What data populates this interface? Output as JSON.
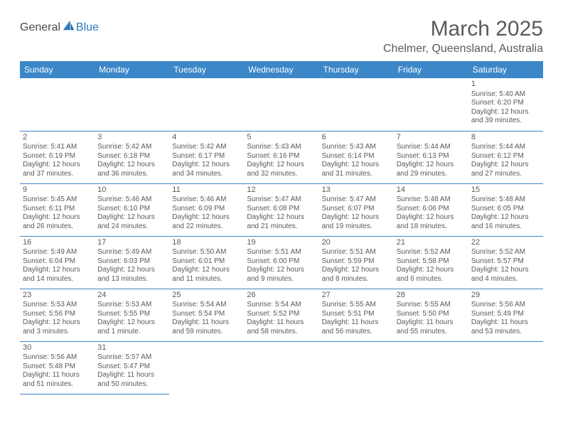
{
  "logo": {
    "part1": "General",
    "part2": "Blue"
  },
  "title": "March 2025",
  "location": "Chelmer, Queensland, Australia",
  "colors": {
    "header_bg": "#3b87c8",
    "header_text": "#ffffff",
    "body_text": "#5a5a5a",
    "rule": "#3b87c8",
    "logo_accent": "#2a7bbf"
  },
  "weekdays": [
    "Sunday",
    "Monday",
    "Tuesday",
    "Wednesday",
    "Thursday",
    "Friday",
    "Saturday"
  ],
  "grid": {
    "rows": 6,
    "cols": 7,
    "first_weekday_index": 6,
    "days_in_month": 31
  },
  "cells": [
    [
      null,
      null,
      null,
      null,
      null,
      null,
      {
        "n": "1",
        "sr": "Sunrise: 5:40 AM",
        "ss": "Sunset: 6:20 PM",
        "d1": "Daylight: 12 hours",
        "d2": "and 39 minutes."
      }
    ],
    [
      {
        "n": "2",
        "sr": "Sunrise: 5:41 AM",
        "ss": "Sunset: 6:19 PM",
        "d1": "Daylight: 12 hours",
        "d2": "and 37 minutes."
      },
      {
        "n": "3",
        "sr": "Sunrise: 5:42 AM",
        "ss": "Sunset: 6:18 PM",
        "d1": "Daylight: 12 hours",
        "d2": "and 36 minutes."
      },
      {
        "n": "4",
        "sr": "Sunrise: 5:42 AM",
        "ss": "Sunset: 6:17 PM",
        "d1": "Daylight: 12 hours",
        "d2": "and 34 minutes."
      },
      {
        "n": "5",
        "sr": "Sunrise: 5:43 AM",
        "ss": "Sunset: 6:16 PM",
        "d1": "Daylight: 12 hours",
        "d2": "and 32 minutes."
      },
      {
        "n": "6",
        "sr": "Sunrise: 5:43 AM",
        "ss": "Sunset: 6:14 PM",
        "d1": "Daylight: 12 hours",
        "d2": "and 31 minutes."
      },
      {
        "n": "7",
        "sr": "Sunrise: 5:44 AM",
        "ss": "Sunset: 6:13 PM",
        "d1": "Daylight: 12 hours",
        "d2": "and 29 minutes."
      },
      {
        "n": "8",
        "sr": "Sunrise: 5:44 AM",
        "ss": "Sunset: 6:12 PM",
        "d1": "Daylight: 12 hours",
        "d2": "and 27 minutes."
      }
    ],
    [
      {
        "n": "9",
        "sr": "Sunrise: 5:45 AM",
        "ss": "Sunset: 6:11 PM",
        "d1": "Daylight: 12 hours",
        "d2": "and 26 minutes."
      },
      {
        "n": "10",
        "sr": "Sunrise: 5:46 AM",
        "ss": "Sunset: 6:10 PM",
        "d1": "Daylight: 12 hours",
        "d2": "and 24 minutes."
      },
      {
        "n": "11",
        "sr": "Sunrise: 5:46 AM",
        "ss": "Sunset: 6:09 PM",
        "d1": "Daylight: 12 hours",
        "d2": "and 22 minutes."
      },
      {
        "n": "12",
        "sr": "Sunrise: 5:47 AM",
        "ss": "Sunset: 6:08 PM",
        "d1": "Daylight: 12 hours",
        "d2": "and 21 minutes."
      },
      {
        "n": "13",
        "sr": "Sunrise: 5:47 AM",
        "ss": "Sunset: 6:07 PM",
        "d1": "Daylight: 12 hours",
        "d2": "and 19 minutes."
      },
      {
        "n": "14",
        "sr": "Sunrise: 5:48 AM",
        "ss": "Sunset: 6:06 PM",
        "d1": "Daylight: 12 hours",
        "d2": "and 18 minutes."
      },
      {
        "n": "15",
        "sr": "Sunrise: 5:48 AM",
        "ss": "Sunset: 6:05 PM",
        "d1": "Daylight: 12 hours",
        "d2": "and 16 minutes."
      }
    ],
    [
      {
        "n": "16",
        "sr": "Sunrise: 5:49 AM",
        "ss": "Sunset: 6:04 PM",
        "d1": "Daylight: 12 hours",
        "d2": "and 14 minutes."
      },
      {
        "n": "17",
        "sr": "Sunrise: 5:49 AM",
        "ss": "Sunset: 6:03 PM",
        "d1": "Daylight: 12 hours",
        "d2": "and 13 minutes."
      },
      {
        "n": "18",
        "sr": "Sunrise: 5:50 AM",
        "ss": "Sunset: 6:01 PM",
        "d1": "Daylight: 12 hours",
        "d2": "and 11 minutes."
      },
      {
        "n": "19",
        "sr": "Sunrise: 5:51 AM",
        "ss": "Sunset: 6:00 PM",
        "d1": "Daylight: 12 hours",
        "d2": "and 9 minutes."
      },
      {
        "n": "20",
        "sr": "Sunrise: 5:51 AM",
        "ss": "Sunset: 5:59 PM",
        "d1": "Daylight: 12 hours",
        "d2": "and 8 minutes."
      },
      {
        "n": "21",
        "sr": "Sunrise: 5:52 AM",
        "ss": "Sunset: 5:58 PM",
        "d1": "Daylight: 12 hours",
        "d2": "and 6 minutes."
      },
      {
        "n": "22",
        "sr": "Sunrise: 5:52 AM",
        "ss": "Sunset: 5:57 PM",
        "d1": "Daylight: 12 hours",
        "d2": "and 4 minutes."
      }
    ],
    [
      {
        "n": "23",
        "sr": "Sunrise: 5:53 AM",
        "ss": "Sunset: 5:56 PM",
        "d1": "Daylight: 12 hours",
        "d2": "and 3 minutes."
      },
      {
        "n": "24",
        "sr": "Sunrise: 5:53 AM",
        "ss": "Sunset: 5:55 PM",
        "d1": "Daylight: 12 hours",
        "d2": "and 1 minute."
      },
      {
        "n": "25",
        "sr": "Sunrise: 5:54 AM",
        "ss": "Sunset: 5:54 PM",
        "d1": "Daylight: 11 hours",
        "d2": "and 59 minutes."
      },
      {
        "n": "26",
        "sr": "Sunrise: 5:54 AM",
        "ss": "Sunset: 5:52 PM",
        "d1": "Daylight: 11 hours",
        "d2": "and 58 minutes."
      },
      {
        "n": "27",
        "sr": "Sunrise: 5:55 AM",
        "ss": "Sunset: 5:51 PM",
        "d1": "Daylight: 11 hours",
        "d2": "and 56 minutes."
      },
      {
        "n": "28",
        "sr": "Sunrise: 5:55 AM",
        "ss": "Sunset: 5:50 PM",
        "d1": "Daylight: 11 hours",
        "d2": "and 55 minutes."
      },
      {
        "n": "29",
        "sr": "Sunrise: 5:56 AM",
        "ss": "Sunset: 5:49 PM",
        "d1": "Daylight: 11 hours",
        "d2": "and 53 minutes."
      }
    ],
    [
      {
        "n": "30",
        "sr": "Sunrise: 5:56 AM",
        "ss": "Sunset: 5:48 PM",
        "d1": "Daylight: 11 hours",
        "d2": "and 51 minutes."
      },
      {
        "n": "31",
        "sr": "Sunrise: 5:57 AM",
        "ss": "Sunset: 5:47 PM",
        "d1": "Daylight: 11 hours",
        "d2": "and 50 minutes."
      },
      null,
      null,
      null,
      null,
      null
    ]
  ]
}
